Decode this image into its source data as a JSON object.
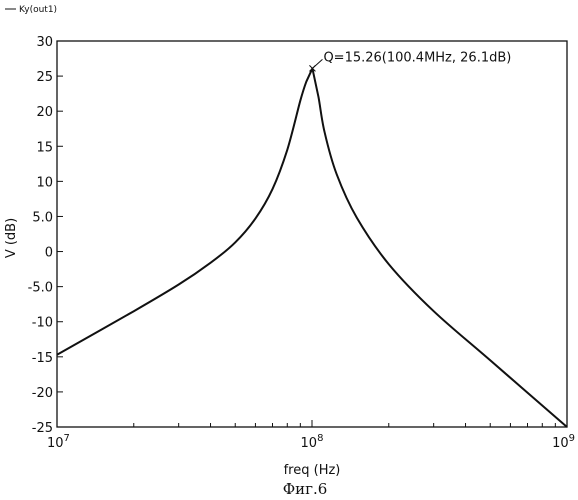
{
  "chart_data": {
    "type": "line",
    "legend": "Ky(out1)",
    "legend_position": "top-left",
    "ylabel": "V (dB)",
    "xlabel": "freq (Hz)",
    "caption": "Фиг.6",
    "x_scale": "log",
    "xlim": [
      10000000,
      1000000000
    ],
    "ylim": [
      -25,
      30
    ],
    "grid": false,
    "y_tick_labels": [
      "30",
      "25",
      "20",
      "15",
      "10",
      "5.0",
      "0",
      "-5.0",
      "-10",
      "-15",
      "-20",
      "-25"
    ],
    "y_tick_values": [
      30,
      25,
      20,
      15,
      10,
      5,
      0,
      -5,
      -10,
      -15,
      -20,
      -25
    ],
    "x_tick_labels": [
      {
        "base": "10",
        "exp": "7",
        "value": 10000000
      },
      {
        "base": "10",
        "exp": "8",
        "value": 100000000
      },
      {
        "base": "10",
        "exp": "9",
        "value": 1000000000
      }
    ],
    "annotation": {
      "text": "Q=15.26(100.4MHz, 26.1dB)",
      "x": 100400000,
      "y": 26.1
    },
    "series": [
      {
        "name": "Ky(out1)",
        "color": "#111111",
        "x": [
          10000000,
          20000000,
          30000000,
          40000000,
          50000000,
          60000000,
          70000000,
          80000000,
          90000000,
          95000000,
          100400000,
          106000000,
          112000000,
          125000000,
          150000000,
          200000000,
          300000000,
          500000000,
          1000000000
        ],
        "y": [
          -14.7,
          -8.5,
          -4.7,
          -1.6,
          1.3,
          4.7,
          8.9,
          14.5,
          21.5,
          24.2,
          26.1,
          22.0,
          17.0,
          11.0,
          4.8,
          -1.8,
          -8.5,
          -15.5,
          -25.0
        ]
      }
    ]
  }
}
